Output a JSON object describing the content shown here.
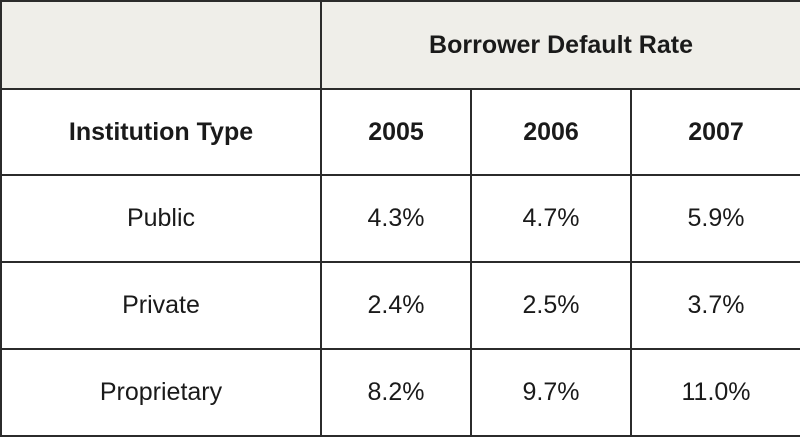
{
  "chart_data": {
    "type": "table",
    "title": "Borrower Default Rate",
    "row_header_label": "Institution Type",
    "columns": [
      "2005",
      "2006",
      "2007"
    ],
    "rows": [
      {
        "label": "Public",
        "values": [
          "4.3%",
          "4.7%",
          "5.9%"
        ]
      },
      {
        "label": "Private",
        "values": [
          "2.4%",
          "2.5%",
          "3.7%"
        ]
      },
      {
        "label": "Proprietary",
        "values": [
          "8.2%",
          "9.7%",
          "11.0%"
        ]
      }
    ]
  },
  "colors": {
    "header_shade": "#efeee9",
    "border": "#2b2b2b",
    "text": "#1a1a1a"
  }
}
